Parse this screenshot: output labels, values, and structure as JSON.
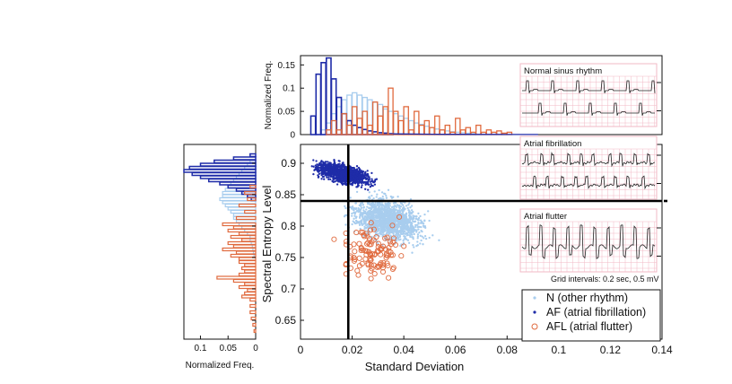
{
  "chart_data": [
    {
      "type": "scatter",
      "name": "main-scatter",
      "xlabel": "Standard Deviation",
      "ylabel": "Spectral Entropy Level",
      "xlim": [
        0,
        0.14
      ],
      "ylim": [
        0.62,
        0.93
      ],
      "xticks": [
        "0",
        "0.02",
        "0.04",
        "0.06",
        "0.08",
        "0.1",
        "0.12",
        "0.14"
      ],
      "yticks": [
        "0.65",
        "0.7",
        "0.75",
        "0.8",
        "0.85",
        "0.9"
      ],
      "thresholds": {
        "x": 0.0185,
        "y": 0.84
      },
      "series": [
        {
          "name": "N (other rhythm)",
          "color": "#a8cdee",
          "marker": "dot",
          "cluster": {
            "x_center": 0.034,
            "x_spread": 0.016,
            "y_center": 0.81,
            "y_spread": 0.038,
            "x_range": [
              0.003,
              0.085
            ],
            "y_range": [
              0.7,
              0.9
            ]
          }
        },
        {
          "name": "AF (atrial fibrillation)",
          "color": "#1f2ca8",
          "marker": "dot",
          "cluster": {
            "x_center": 0.017,
            "x_spread": 0.012,
            "y_center": 0.883,
            "y_spread": 0.018,
            "x_range": [
              0.002,
              0.075
            ],
            "y_range": [
              0.8,
              0.915
            ]
          }
        },
        {
          "name": "AFL (atrial flutter)",
          "color": "#e06a3e",
          "marker": "circle",
          "cluster": {
            "x_center": 0.028,
            "x_spread": 0.014,
            "y_center": 0.76,
            "y_spread": 0.055,
            "x_range": [
              0.005,
              0.07
            ],
            "y_range": [
              0.625,
              0.86
            ]
          }
        }
      ]
    },
    {
      "type": "bar",
      "name": "top-histogram",
      "ylabel": "Normalized Freq.",
      "xlim": [
        0,
        0.14
      ],
      "ylim": [
        0,
        0.17
      ],
      "yticks": [
        "0",
        "0.05",
        "0.1",
        "0.15"
      ],
      "bin_width": 0.002,
      "series": [
        {
          "name": "AF",
          "color": "#1f2ca8",
          "bin_starts": [
            0.004,
            0.006,
            0.008,
            0.01,
            0.012,
            0.014,
            0.016,
            0.018,
            0.02,
            0.022,
            0.024,
            0.026,
            0.028,
            0.03,
            0.032,
            0.034
          ],
          "values": [
            0.04,
            0.13,
            0.155,
            0.165,
            0.12,
            0.08,
            0.045,
            0.03,
            0.02,
            0.015,
            0.011,
            0.008,
            0.006,
            0.004,
            0.003,
            0.002
          ]
        },
        {
          "name": "N",
          "color": "#a8cdee",
          "bin_starts": [
            0.008,
            0.01,
            0.012,
            0.014,
            0.016,
            0.018,
            0.02,
            0.022,
            0.024,
            0.026,
            0.028,
            0.03,
            0.032,
            0.034,
            0.036,
            0.038,
            0.04,
            0.042,
            0.044,
            0.046,
            0.048,
            0.05,
            0.052,
            0.054,
            0.056,
            0.058,
            0.06,
            0.062,
            0.064,
            0.066
          ],
          "values": [
            0.01,
            0.025,
            0.045,
            0.06,
            0.075,
            0.085,
            0.09,
            0.085,
            0.08,
            0.075,
            0.07,
            0.065,
            0.055,
            0.05,
            0.045,
            0.04,
            0.035,
            0.03,
            0.025,
            0.022,
            0.018,
            0.015,
            0.012,
            0.01,
            0.008,
            0.006,
            0.005,
            0.004,
            0.003,
            0.002
          ]
        },
        {
          "name": "AFL",
          "color": "#e06a3e",
          "bin_starts": [
            0.01,
            0.012,
            0.014,
            0.016,
            0.018,
            0.02,
            0.022,
            0.024,
            0.026,
            0.028,
            0.03,
            0.032,
            0.034,
            0.036,
            0.038,
            0.04,
            0.042,
            0.044,
            0.046,
            0.048,
            0.05,
            0.052,
            0.054,
            0.056,
            0.058,
            0.06,
            0.062,
            0.064,
            0.066,
            0.068,
            0.07,
            0.072,
            0.074,
            0.076,
            0.078,
            0.08
          ],
          "values": [
            0.01,
            0.03,
            0.01,
            0.045,
            0.02,
            0.06,
            0.035,
            0.05,
            0.02,
            0.07,
            0.04,
            0.06,
            0.1,
            0.05,
            0.03,
            0.06,
            0.01,
            0.05,
            0.02,
            0.03,
            0.015,
            0.04,
            0.01,
            0.02,
            0.005,
            0.035,
            0.01,
            0.015,
            0.005,
            0.02,
            0.005,
            0.01,
            0.005,
            0.008,
            0.003,
            0.005
          ]
        }
      ]
    },
    {
      "type": "bar",
      "orientation": "horizontal",
      "name": "left-histogram",
      "xlabel": "Normalized Freq.",
      "xlim": [
        0,
        0.13
      ],
      "ylim": [
        0.62,
        0.93
      ],
      "xticks": [
        "0.1",
        "0.05",
        "0"
      ],
      "bin_width": 0.005,
      "series": [
        {
          "name": "AF",
          "color": "#1f2ca8",
          "bin_starts": [
            0.91,
            0.905,
            0.9,
            0.895,
            0.89,
            0.885,
            0.88,
            0.875,
            0.87,
            0.865,
            0.86,
            0.855,
            0.85,
            0.845,
            0.84
          ],
          "values": [
            0.01,
            0.04,
            0.075,
            0.1,
            0.12,
            0.13,
            0.115,
            0.1,
            0.085,
            0.065,
            0.05,
            0.035,
            0.025,
            0.015,
            0.008
          ]
        },
        {
          "name": "N",
          "color": "#a8cdee",
          "bin_starts": [
            0.9,
            0.895,
            0.89,
            0.885,
            0.88,
            0.875,
            0.87,
            0.865,
            0.86,
            0.855,
            0.85,
            0.845,
            0.84,
            0.835,
            0.83,
            0.825,
            0.82,
            0.815,
            0.81,
            0.805,
            0.8,
            0.795,
            0.79,
            0.785,
            0.78,
            0.775,
            0.77,
            0.765,
            0.76,
            0.755,
            0.75
          ],
          "values": [
            0.01,
            0.015,
            0.02,
            0.025,
            0.03,
            0.035,
            0.04,
            0.045,
            0.05,
            0.055,
            0.06,
            0.06,
            0.065,
            0.06,
            0.055,
            0.05,
            0.045,
            0.04,
            0.04,
            0.035,
            0.03,
            0.025,
            0.02,
            0.015,
            0.01,
            0.01,
            0.008,
            0.006,
            0.005,
            0.004,
            0.003
          ]
        },
        {
          "name": "AFL",
          "color": "#e06a3e",
          "bin_starts": [
            0.86,
            0.85,
            0.84,
            0.83,
            0.82,
            0.81,
            0.8,
            0.795,
            0.79,
            0.785,
            0.78,
            0.775,
            0.77,
            0.765,
            0.76,
            0.755,
            0.75,
            0.745,
            0.74,
            0.735,
            0.73,
            0.725,
            0.72,
            0.715,
            0.71,
            0.705,
            0.7,
            0.695,
            0.69,
            0.685,
            0.68,
            0.67,
            0.66,
            0.65,
            0.64,
            0.63
          ],
          "values": [
            0.01,
            0.02,
            0.015,
            0.03,
            0.02,
            0.035,
            0.06,
            0.04,
            0.05,
            0.03,
            0.045,
            0.025,
            0.05,
            0.04,
            0.06,
            0.035,
            0.045,
            0.03,
            0.03,
            0.02,
            0.025,
            0.02,
            0.03,
            0.07,
            0.04,
            0.02,
            0.03,
            0.015,
            0.02,
            0.025,
            0.01,
            0.01,
            0.01,
            0.008,
            0.005,
            0.003
          ]
        }
      ]
    }
  ],
  "legend": {
    "entries": [
      {
        "label": "N (other rhythm)",
        "color": "#a8cdee",
        "marker": "dot"
      },
      {
        "label": "AF (atrial fibrillation)",
        "color": "#1f2ca8",
        "marker": "dot"
      },
      {
        "label": "AFL (atrial flutter)",
        "color": "#e06a3e",
        "marker": "circle"
      }
    ],
    "placement": "bottom-right"
  },
  "ecg_inset": {
    "panels": [
      {
        "title": "Normal sinus rhythm",
        "rhythm": "normal"
      },
      {
        "title": "Atrial fibrillation",
        "rhythm": "af"
      },
      {
        "title": "Atrial flutter",
        "rhythm": "afl"
      }
    ],
    "grid_note": "Grid intervals: 0.2 sec, 0.5 mV",
    "grid_color": "#f2b8c6"
  },
  "colors": {
    "axis": "#111111",
    "threshold": "#000000"
  }
}
